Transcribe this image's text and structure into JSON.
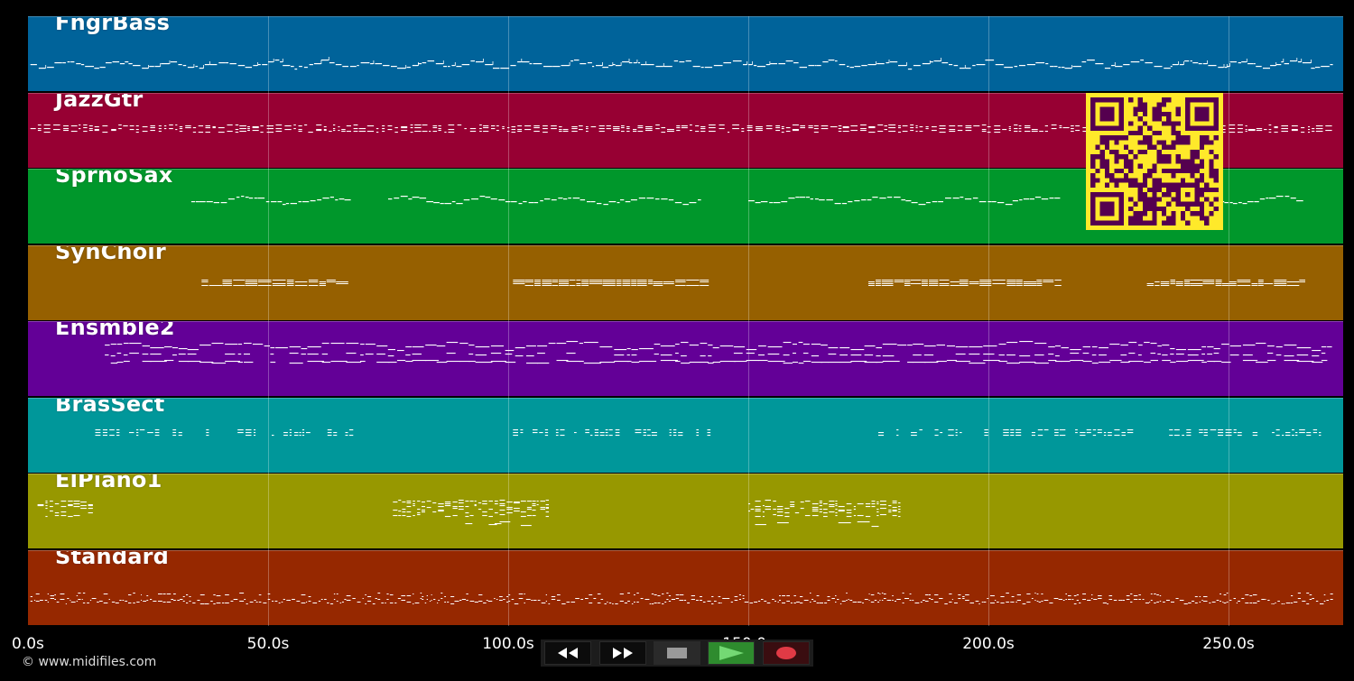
{
  "tracks": [
    {
      "name": "FngrBass",
      "color": "#00639a",
      "style": "bassline",
      "segments": [
        [
          0.5,
          271.5
        ]
      ]
    },
    {
      "name": "JazzGtr",
      "color": "#970033",
      "style": "chords",
      "segments": [
        [
          0.5,
          271.5
        ]
      ]
    },
    {
      "name": "SprnoSax",
      "color": "#00972b",
      "style": "melody",
      "segments": [
        [
          34,
          66
        ],
        [
          75,
          140
        ],
        [
          150,
          215
        ],
        [
          232,
          265
        ]
      ]
    },
    {
      "name": "SynChoir",
      "color": "#966000",
      "style": "pad",
      "segments": [
        [
          35,
          66
        ],
        [
          101,
          140
        ],
        [
          175,
          215
        ],
        [
          233,
          265
        ]
      ]
    },
    {
      "name": "Ensmble2",
      "color": "#630097",
      "style": "strings",
      "segments": [
        [
          16,
          271.5
        ]
      ]
    },
    {
      "name": "BrasSect",
      "color": "#00979a",
      "style": "brass",
      "segments": [
        [
          14,
          68
        ],
        [
          101,
          142
        ],
        [
          175,
          271.5
        ]
      ]
    },
    {
      "name": "ElPiano1",
      "color": "#979800",
      "style": "piano",
      "segments": [
        [
          2,
          13
        ],
        [
          76,
          108
        ],
        [
          150,
          182
        ]
      ]
    },
    {
      "name": "Standard",
      "color": "#962800",
      "style": "drums",
      "segments": [
        [
          0.5,
          271.5
        ]
      ]
    }
  ],
  "axis": {
    "duration_s": 274,
    "tick_labels": [
      {
        "t": 0,
        "label": "0.0s"
      },
      {
        "t": 50,
        "label": "50.0s"
      },
      {
        "t": 100,
        "label": "100.0s"
      },
      {
        "t": 150,
        "label": "150.0s"
      },
      {
        "t": 200,
        "label": "200.0s"
      },
      {
        "t": 250,
        "label": "250.0s"
      }
    ]
  },
  "copyright": "© www.midifiles.com",
  "transport": {
    "rewind_icon": "rewind-icon",
    "fast_forward_icon": "fast-forward-icon",
    "stop_icon": "stop-icon",
    "play_icon": "play-icon",
    "record_icon": "record-icon"
  },
  "colors": {
    "background": "#000000",
    "notes": "#ffffff",
    "play": "#2e8b2e",
    "record": "#c0202a",
    "qr_fg": "#55004f",
    "qr_bg": "#ffe92a"
  }
}
